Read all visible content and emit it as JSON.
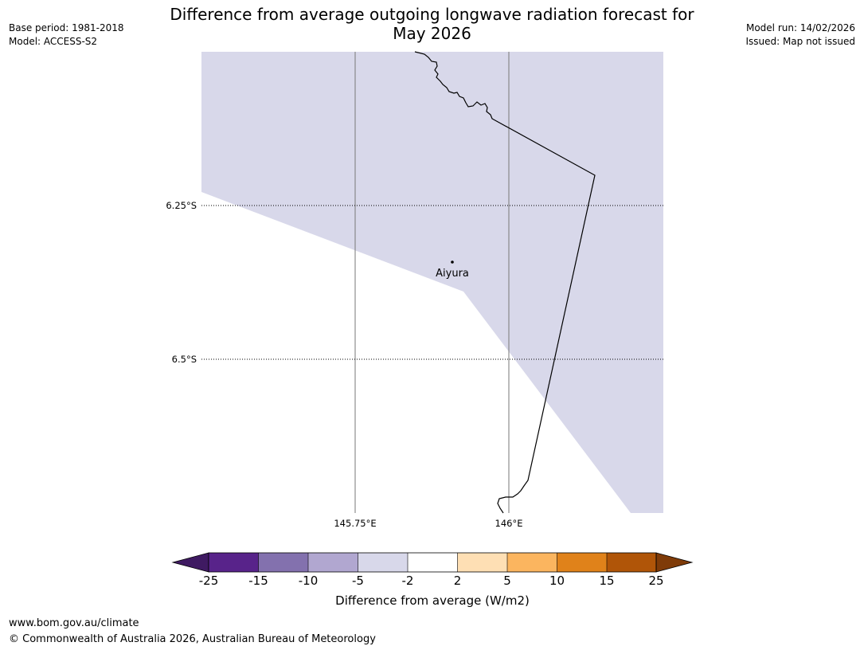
{
  "title_line1": "Difference from average outgoing longwave radiation forecast for",
  "title_line2": "May 2026",
  "base_period": "Base period: 1981-2018",
  "model": "Model: ACCESS-S2",
  "model_run": "Model run: 14/02/2026",
  "issued": "Issued: Map not issued",
  "lat_ticks": [
    "6.25°S",
    "6.5°S"
  ],
  "lon_ticks": [
    "145.75°E",
    "146°E"
  ],
  "place": {
    "name": "Aiyura"
  },
  "colorbar": {
    "label": "Difference from average (W/m2)",
    "ticks": [
      "-25",
      "-15",
      "-10",
      "-5",
      "-2",
      "2",
      "5",
      "10",
      "15",
      "25"
    ],
    "colors": [
      "#3f1a62",
      "#58238a",
      "#8371ae",
      "#b1a7d0",
      "#d8d8ea",
      "#ffffff",
      "#fedfb4",
      "#fbb55f",
      "#e0821a",
      "#b05508",
      "#7f3b08"
    ]
  },
  "map": {
    "shaded_class_color": "#d8d8ea"
  },
  "footer_url": "www.bom.gov.au/climate",
  "footer_copyright": "© Commonwealth of Australia 2026, Australian Bureau of Meteorology"
}
